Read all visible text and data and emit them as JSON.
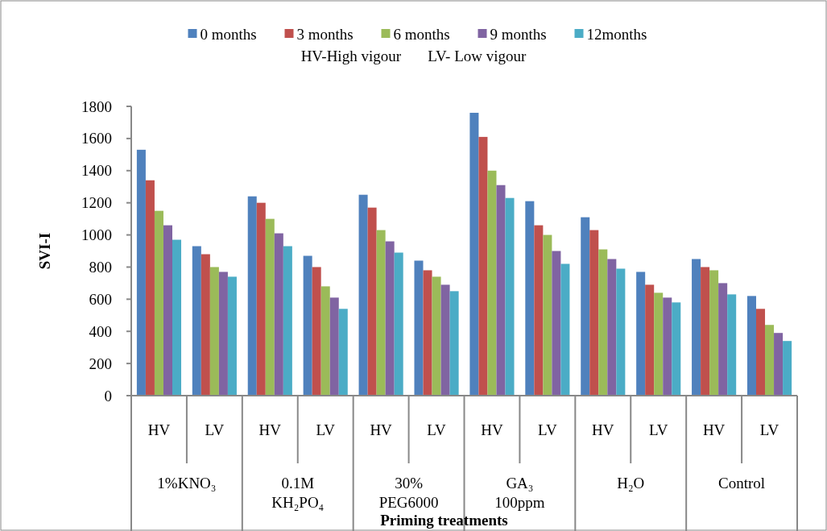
{
  "chart_data": {
    "type": "bar",
    "subtitle": "HV-High vigour       LV- Low vigour",
    "ylabel": "SVI-I",
    "xlabel": "Priming treatments",
    "categories": [
      "HV",
      "LV",
      "HV",
      "LV",
      "HV",
      "LV",
      "HV",
      "LV",
      "HV",
      "LV",
      "HV",
      "LV"
    ],
    "annotations": [
      "1%KNO₃",
      "0.1M\nKH₂PO₄",
      "30%\nPEG6000",
      "GA₃\n100ppm",
      "H₂O",
      "Control"
    ],
    "series": [
      {
        "name": "0 months",
        "color": "#4f81bd",
        "values": [
          1530,
          930,
          1240,
          870,
          1250,
          840,
          1760,
          1210,
          1110,
          770,
          850,
          620
        ]
      },
      {
        "name": "3 months",
        "color": "#c0504d",
        "values": [
          1340,
          880,
          1200,
          800,
          1170,
          780,
          1610,
          1060,
          1030,
          690,
          800,
          540
        ]
      },
      {
        "name": "6 months",
        "color": "#9bbb59",
        "values": [
          1150,
          800,
          1100,
          680,
          1030,
          740,
          1400,
          1000,
          910,
          640,
          780,
          440
        ]
      },
      {
        "name": "9 months",
        "color": "#8064a2",
        "values": [
          1060,
          770,
          1010,
          610,
          960,
          690,
          1310,
          900,
          850,
          610,
          700,
          390
        ]
      },
      {
        "name": "12months",
        "color": "#4bacc6",
        "values": [
          970,
          740,
          930,
          540,
          890,
          650,
          1230,
          820,
          790,
          580,
          630,
          340
        ]
      }
    ],
    "ylim": [
      0,
      1800
    ],
    "yticks": [
      0,
      200,
      400,
      600,
      800,
      1000,
      1200,
      1400,
      1600,
      1800
    ],
    "grid": false,
    "legend": "top"
  }
}
